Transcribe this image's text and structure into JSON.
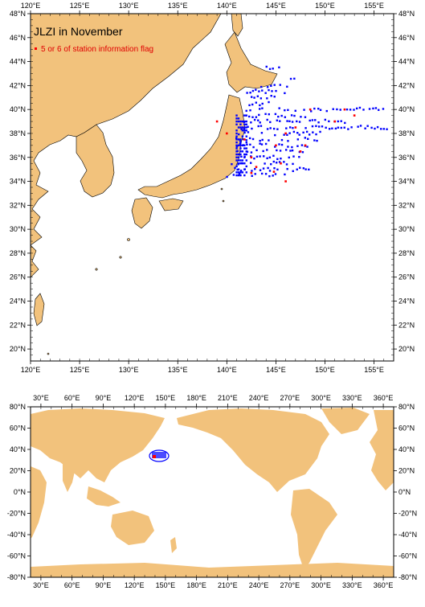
{
  "top_map": {
    "title": "JLZI in November",
    "legend_label": "5 or 6 of station information flag",
    "lon_range": [
      120,
      157
    ],
    "lat_range": [
      19,
      48
    ],
    "lon_ticks": [
      "120°E",
      "125°E",
      "130°E",
      "135°E",
      "140°E",
      "145°E",
      "150°E",
      "155°E"
    ],
    "lat_ticks": [
      "20°N",
      "22°N",
      "24°N",
      "26°N",
      "28°N",
      "30°N",
      "32°N",
      "34°N",
      "36°N",
      "38°N",
      "40°N",
      "42°N",
      "44°N",
      "46°N",
      "48°N"
    ],
    "land_color": "#f2c27c",
    "station_color": "#0000ff",
    "flag_color": "#ff0000"
  },
  "world_map": {
    "lon_ticks": [
      "30°E",
      "60°E",
      "90°E",
      "120°E",
      "150°E",
      "180°E",
      "210°E",
      "240°E",
      "270°E",
      "300°E",
      "330°E",
      "360°E"
    ],
    "lat_ticks": [
      "80°N",
      "60°N",
      "40°N",
      "20°N",
      "0°N",
      "-20°N",
      "-40°N",
      "-60°N",
      "-80°N"
    ],
    "land_color": "#f2c27c"
  }
}
